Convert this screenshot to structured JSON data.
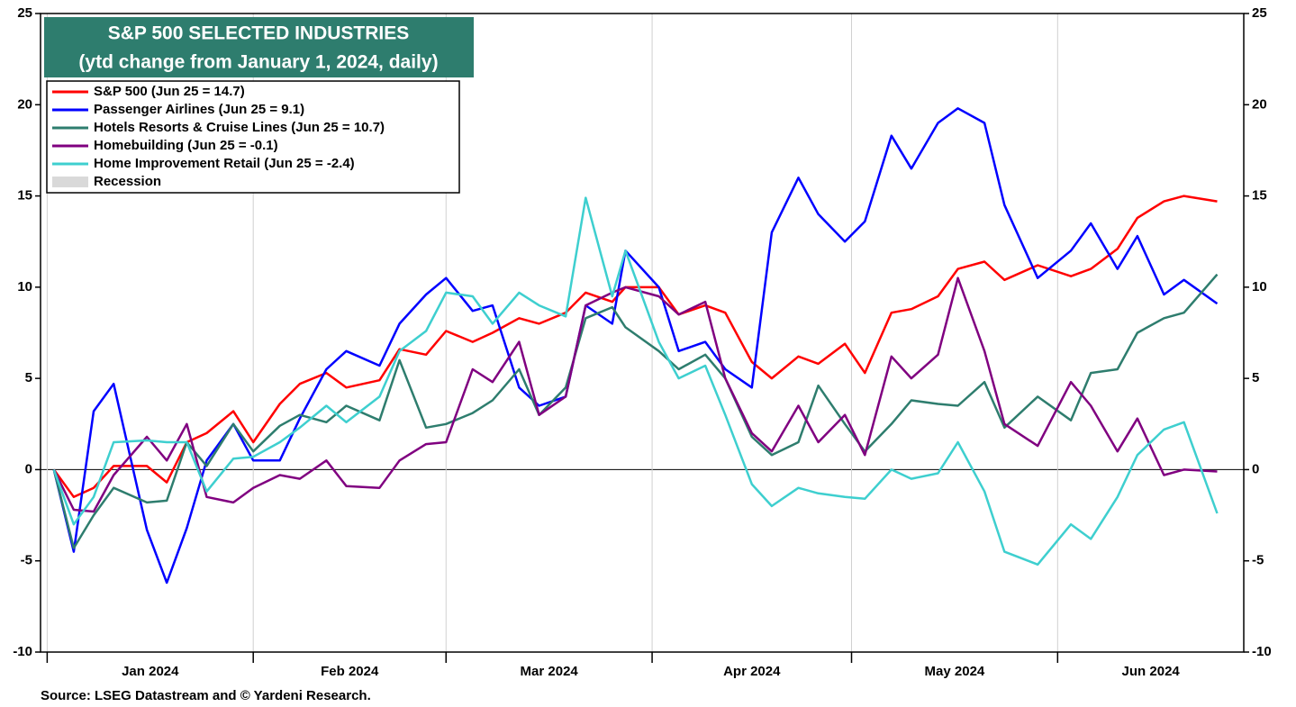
{
  "chart_data": {
    "type": "line",
    "title": "S&P 500 SELECTED INDUSTRIES",
    "subtitle": "(ytd change from January 1, 2024, daily)",
    "source": "Source: LSEG Datastream and © Yardeni Research.",
    "x": [
      "2024-01-02",
      "2024-01-05",
      "2024-01-08",
      "2024-01-11",
      "2024-01-16",
      "2024-01-19",
      "2024-01-22",
      "2024-01-25",
      "2024-01-29",
      "2024-02-01",
      "2024-02-05",
      "2024-02-08",
      "2024-02-12",
      "2024-02-15",
      "2024-02-20",
      "2024-02-23",
      "2024-02-27",
      "2024-03-01",
      "2024-03-05",
      "2024-03-08",
      "2024-03-12",
      "2024-03-15",
      "2024-03-19",
      "2024-03-22",
      "2024-03-26",
      "2024-03-28",
      "2024-04-02",
      "2024-04-05",
      "2024-04-09",
      "2024-04-12",
      "2024-04-16",
      "2024-04-19",
      "2024-04-23",
      "2024-04-26",
      "2024-04-30",
      "2024-05-03",
      "2024-05-07",
      "2024-05-10",
      "2024-05-14",
      "2024-05-17",
      "2024-05-21",
      "2024-05-24",
      "2024-05-29",
      "2024-06-03",
      "2024-06-06",
      "2024-06-10",
      "2024-06-13",
      "2024-06-17",
      "2024-06-20",
      "2024-06-25"
    ],
    "series": [
      {
        "name": "S&P 500 (Jun 25 = 14.7)",
        "color": "#ff0000",
        "values": [
          0,
          -1.5,
          -1.0,
          0.2,
          0.2,
          -0.7,
          1.5,
          2.0,
          3.2,
          1.5,
          3.6,
          4.7,
          5.3,
          4.5,
          4.9,
          6.6,
          6.3,
          7.6,
          7.0,
          7.5,
          8.3,
          8.0,
          8.6,
          9.7,
          9.2,
          10.0,
          10.0,
          8.5,
          9.0,
          8.6,
          5.9,
          5.0,
          6.2,
          5.8,
          6.9,
          5.3,
          8.6,
          8.8,
          9.5,
          11.0,
          11.4,
          10.4,
          11.2,
          10.6,
          11.0,
          12.1,
          13.8,
          14.7,
          15.0,
          14.7
        ]
      },
      {
        "name": "Passenger Airlines (Jun 25 = 9.1)",
        "color": "#0000ff",
        "values": [
          0,
          -4.5,
          3.2,
          4.7,
          -3.3,
          -6.2,
          -3.2,
          0.5,
          2.5,
          0.5,
          0.5,
          2.8,
          5.5,
          6.5,
          5.7,
          8.0,
          9.6,
          10.5,
          8.7,
          9.0,
          4.5,
          3.5,
          4.0,
          9.0,
          8.0,
          12.0,
          10.0,
          6.5,
          7.0,
          5.5,
          4.5,
          13.0,
          16.0,
          14.0,
          12.5,
          13.6,
          18.3,
          16.5,
          19.0,
          19.8,
          19.0,
          14.5,
          10.5,
          12.0,
          13.5,
          11.0,
          12.8,
          9.6,
          10.4,
          9.1
        ]
      },
      {
        "name": "Hotels Resorts & Cruise Lines (Jun 25 = 10.7)",
        "color": "#2e7d6e",
        "values": [
          0,
          -4.3,
          -2.5,
          -1.0,
          -1.8,
          -1.7,
          1.5,
          0.2,
          2.5,
          1.0,
          2.4,
          3.0,
          2.6,
          3.5,
          2.7,
          6.0,
          2.3,
          2.5,
          3.1,
          3.8,
          5.5,
          3.0,
          4.5,
          8.3,
          8.9,
          7.8,
          6.5,
          5.5,
          6.3,
          5.0,
          1.8,
          0.8,
          1.5,
          4.6,
          2.5,
          1.0,
          2.5,
          3.8,
          3.6,
          3.5,
          4.8,
          2.3,
          4.0,
          2.7,
          5.3,
          5.5,
          7.5,
          8.3,
          8.6,
          10.7
        ]
      },
      {
        "name": "Homebuilding (Jun 25 = -0.1)",
        "color": "#800080",
        "values": [
          0,
          -2.2,
          -2.3,
          -0.3,
          1.8,
          0.5,
          2.5,
          -1.5,
          -1.8,
          -1.0,
          -0.3,
          -0.5,
          0.5,
          -0.9,
          -1.0,
          0.5,
          1.4,
          1.5,
          5.5,
          4.8,
          7.0,
          3.0,
          4.0,
          9.0,
          9.7,
          10.0,
          9.5,
          8.5,
          9.2,
          5.0,
          2.0,
          1.0,
          3.5,
          1.5,
          3.0,
          0.8,
          6.2,
          5.0,
          6.3,
          10.5,
          6.5,
          2.5,
          1.3,
          4.8,
          3.5,
          1.0,
          2.8,
          -0.3,
          0.0,
          -0.1
        ]
      },
      {
        "name": "Home Improvement Retail (Jun 25 = -2.4)",
        "color": "#3ecfcf",
        "values": [
          0,
          -3.0,
          -1.5,
          1.5,
          1.6,
          1.5,
          1.5,
          -1.2,
          0.6,
          0.7,
          1.5,
          2.3,
          3.5,
          2.6,
          4.0,
          6.5,
          7.6,
          9.7,
          9.5,
          8.0,
          9.7,
          9.0,
          8.4,
          14.9,
          9.5,
          12.0,
          7.0,
          5.0,
          5.7,
          3.0,
          -0.8,
          -2.0,
          -1.0,
          -1.3,
          -1.5,
          -1.6,
          0.0,
          -0.5,
          -0.2,
          1.5,
          -1.2,
          -4.5,
          -5.2,
          -3.0,
          -3.8,
          -1.5,
          0.8,
          2.2,
          2.6,
          -2.4
        ]
      }
    ],
    "recession_legend": {
      "name": "Recession",
      "color": "#d9d9d9"
    },
    "xlim": [
      "2023-12-31",
      "2024-06-29"
    ],
    "xticks": [
      {
        "value": "2024-01-01",
        "label": "Jan 2024"
      },
      {
        "value": "2024-02-01",
        "label": "Feb 2024"
      },
      {
        "value": "2024-03-01",
        "label": "Mar 2024"
      },
      {
        "value": "2024-04-01",
        "label": "Apr 2024"
      },
      {
        "value": "2024-05-01",
        "label": "May 2024"
      },
      {
        "value": "2024-06-01",
        "label": "Jun 2024"
      }
    ],
    "ylim": [
      -10,
      25
    ],
    "yticks": [
      -10,
      -5,
      0,
      5,
      10,
      15,
      20,
      25
    ],
    "title_box_color": "#2e7d6e"
  }
}
